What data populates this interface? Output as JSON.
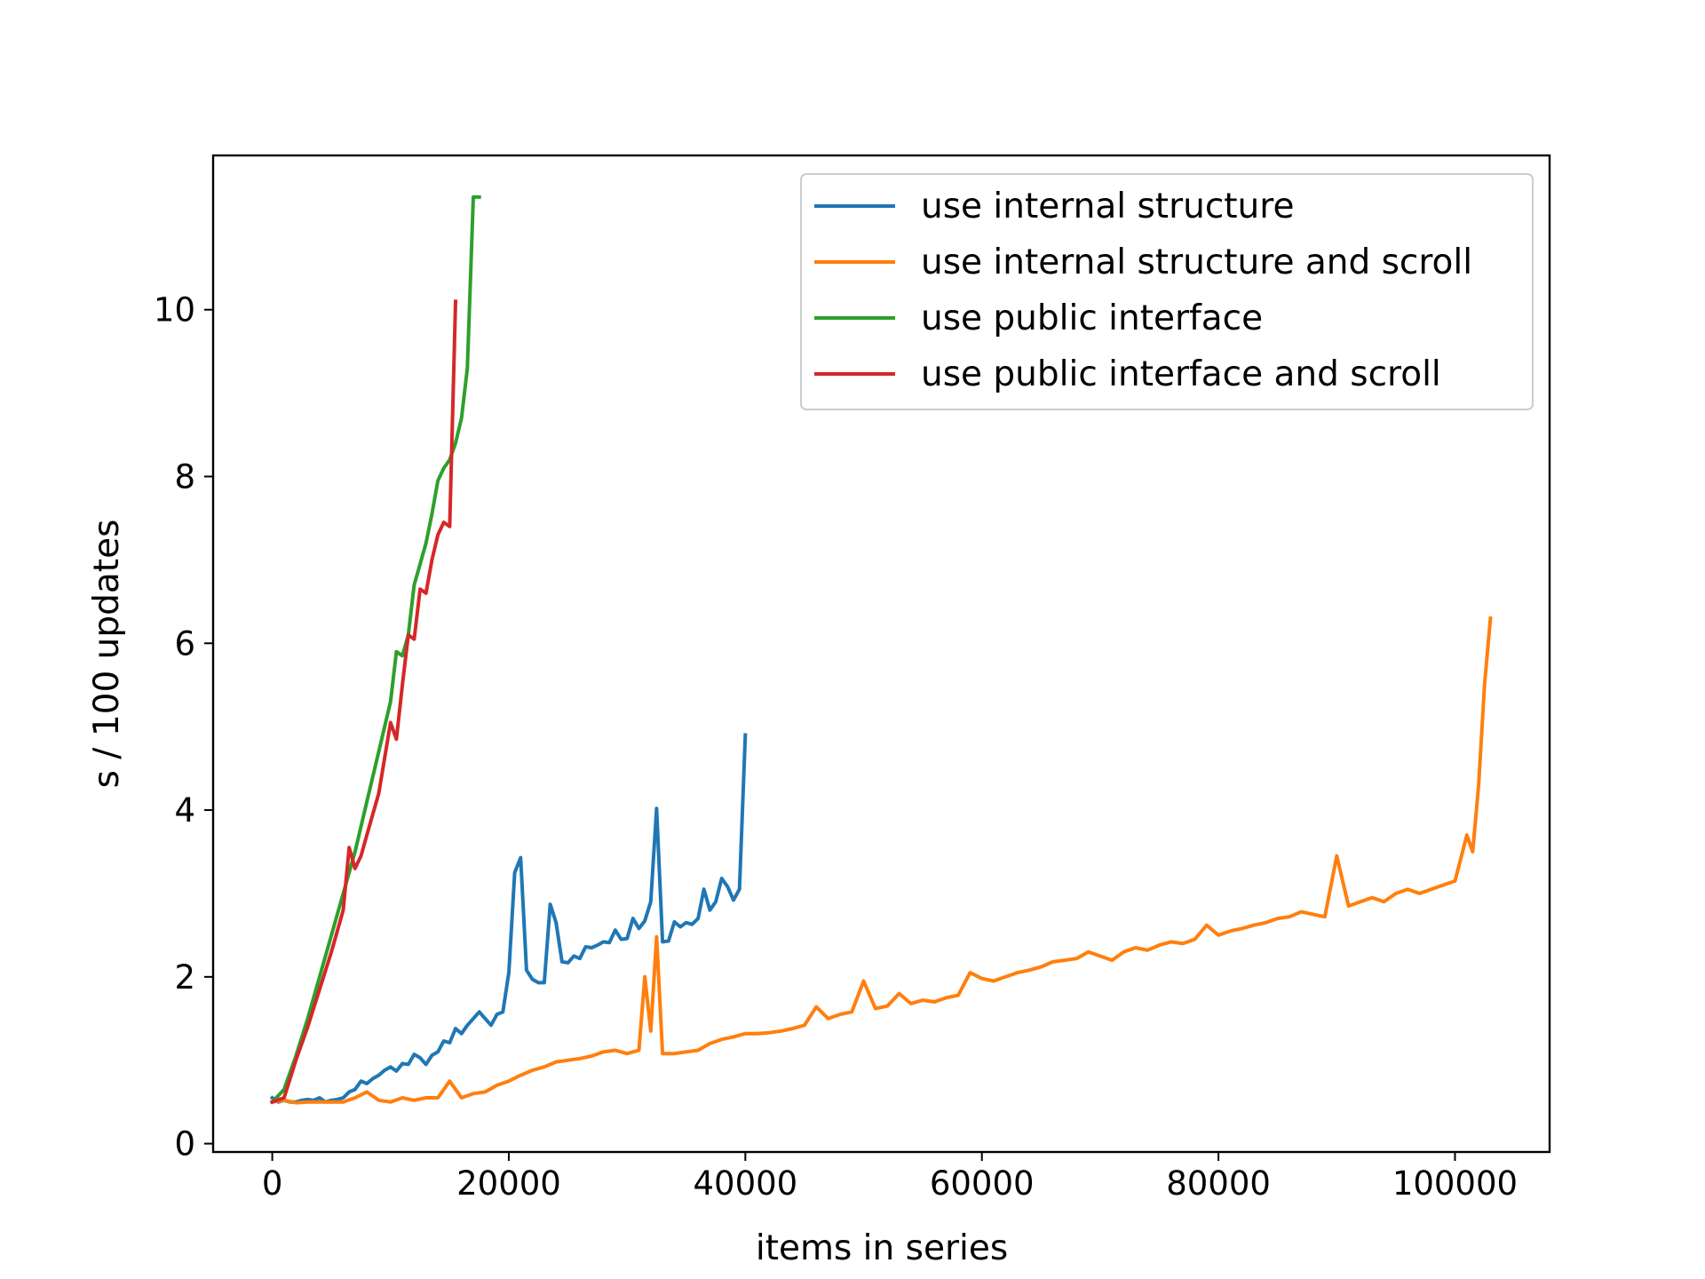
{
  "chart_data": {
    "type": "line",
    "xlabel": "items in series",
    "ylabel": "s / 100 updates",
    "xlim": [
      -5000,
      108000
    ],
    "ylim": [
      -0.1,
      11.85
    ],
    "xticks": [
      0,
      20000,
      40000,
      60000,
      80000,
      100000
    ],
    "xtick_labels": [
      "0",
      "20000",
      "40000",
      "60000",
      "80000",
      "100000"
    ],
    "yticks": [
      0,
      2,
      4,
      6,
      8,
      10
    ],
    "ytick_labels": [
      "0",
      "2",
      "4",
      "6",
      "8",
      "10"
    ],
    "grid": false,
    "legend_position": "upper right",
    "series": [
      {
        "name": "use internal structure",
        "color": "#1f77b4",
        "x": [
          0,
          500,
          1000,
          1500,
          2000,
          2500,
          3000,
          3500,
          4000,
          4500,
          5000,
          5500,
          6000,
          6500,
          7000,
          7500,
          8000,
          8500,
          9000,
          9500,
          10000,
          10500,
          11000,
          11500,
          12000,
          12500,
          13000,
          13500,
          14000,
          14500,
          15000,
          15500,
          16000,
          16500,
          17000,
          17500,
          18000,
          18500,
          19000,
          19500,
          20000,
          20500,
          21000,
          21500,
          22000,
          22500,
          23000,
          23500,
          24000,
          24500,
          25000,
          25500,
          26000,
          26500,
          27000,
          27500,
          28000,
          28500,
          29000,
          29500,
          30000,
          30500,
          31000,
          31500,
          32000,
          32500,
          33000,
          33500,
          34000,
          34500,
          35000,
          35500,
          36000,
          36500,
          37000,
          37500,
          38000,
          38500,
          39000,
          39500,
          40000
        ],
        "y": [
          0.55,
          0.5,
          0.52,
          0.5,
          0.5,
          0.52,
          0.53,
          0.52,
          0.55,
          0.5,
          0.52,
          0.53,
          0.55,
          0.62,
          0.65,
          0.75,
          0.72,
          0.78,
          0.82,
          0.88,
          0.92,
          0.87,
          0.96,
          0.95,
          1.07,
          1.03,
          0.95,
          1.06,
          1.1,
          1.23,
          1.21,
          1.38,
          1.32,
          1.42,
          1.5,
          1.58,
          1.5,
          1.42,
          1.55,
          1.58,
          2.05,
          3.25,
          3.43,
          2.08,
          1.97,
          1.93,
          1.93,
          2.87,
          2.65,
          2.18,
          2.17,
          2.25,
          2.22,
          2.36,
          2.35,
          2.38,
          2.42,
          2.41,
          2.56,
          2.45,
          2.46,
          2.7,
          2.58,
          2.67,
          2.9,
          4.02,
          2.42,
          2.43,
          2.66,
          2.6,
          2.65,
          2.63,
          2.7,
          3.05,
          2.8,
          2.9,
          3.18,
          3.08,
          2.92,
          3.05,
          4.9
        ]
      },
      {
        "name": "use internal structure and scroll",
        "color": "#ff7f0e",
        "x": [
          0,
          1000,
          2000,
          3000,
          4000,
          5000,
          6000,
          7000,
          8000,
          9000,
          10000,
          11000,
          12000,
          13000,
          14000,
          15000,
          16000,
          17000,
          18000,
          19000,
          20000,
          21000,
          22000,
          23000,
          24000,
          25000,
          26000,
          27000,
          28000,
          29000,
          30000,
          31000,
          31500,
          32000,
          32500,
          33000,
          34000,
          35000,
          36000,
          37000,
          38000,
          39000,
          40000,
          41000,
          42000,
          43000,
          44000,
          45000,
          46000,
          47000,
          48000,
          49000,
          50000,
          51000,
          52000,
          53000,
          54000,
          55000,
          56000,
          57000,
          58000,
          59000,
          60000,
          61000,
          62000,
          63000,
          64000,
          65000,
          66000,
          67000,
          68000,
          69000,
          70000,
          71000,
          72000,
          73000,
          74000,
          75000,
          76000,
          77000,
          78000,
          79000,
          80000,
          81000,
          82000,
          83000,
          84000,
          85000,
          86000,
          87000,
          88000,
          89000,
          90000,
          91000,
          92000,
          93000,
          94000,
          95000,
          96000,
          97000,
          98000,
          99000,
          100000,
          101000,
          101500,
          102000,
          102500,
          103000
        ],
        "y": [
          0.5,
          0.52,
          0.49,
          0.5,
          0.5,
          0.5,
          0.5,
          0.55,
          0.62,
          0.52,
          0.5,
          0.55,
          0.52,
          0.55,
          0.55,
          0.75,
          0.55,
          0.6,
          0.62,
          0.7,
          0.75,
          0.82,
          0.88,
          0.92,
          0.98,
          1.0,
          1.02,
          1.05,
          1.1,
          1.12,
          1.08,
          1.12,
          2.0,
          1.35,
          2.48,
          1.08,
          1.08,
          1.1,
          1.12,
          1.2,
          1.25,
          1.28,
          1.32,
          1.32,
          1.33,
          1.35,
          1.38,
          1.42,
          1.64,
          1.5,
          1.55,
          1.58,
          1.95,
          1.62,
          1.65,
          1.8,
          1.68,
          1.72,
          1.7,
          1.75,
          1.78,
          2.05,
          1.98,
          1.95,
          2.0,
          2.05,
          2.08,
          2.12,
          2.18,
          2.2,
          2.22,
          2.3,
          2.25,
          2.2,
          2.3,
          2.35,
          2.32,
          2.38,
          2.42,
          2.4,
          2.45,
          2.62,
          2.5,
          2.55,
          2.58,
          2.62,
          2.65,
          2.7,
          2.72,
          2.78,
          2.75,
          2.72,
          3.45,
          2.85,
          2.9,
          2.95,
          2.9,
          3.0,
          3.05,
          3.0,
          3.05,
          3.1,
          3.15,
          3.7,
          3.5,
          4.3,
          5.5,
          6.3
        ]
      },
      {
        "name": "use public interface",
        "color": "#2ca02c",
        "x": [
          0,
          1000,
          2000,
          3000,
          4000,
          5000,
          6000,
          7000,
          8000,
          9000,
          10000,
          10500,
          11000,
          11500,
          12000,
          12500,
          13000,
          13500,
          14000,
          14500,
          15000,
          15500,
          16000,
          16500,
          17000,
          17500
        ],
        "y": [
          0.5,
          0.65,
          1.05,
          1.5,
          2.0,
          2.5,
          3.0,
          3.5,
          4.1,
          4.7,
          5.3,
          5.9,
          5.85,
          6.1,
          6.7,
          6.95,
          7.2,
          7.55,
          7.95,
          8.1,
          8.2,
          8.4,
          8.7,
          9.3,
          11.35,
          11.35
        ]
      },
      {
        "name": "use public interface and scroll",
        "color": "#d62728",
        "x": [
          0,
          1000,
          2000,
          3000,
          4000,
          5000,
          6000,
          6500,
          7000,
          7500,
          8000,
          9000,
          10000,
          10500,
          11000,
          11500,
          12000,
          12500,
          13000,
          13500,
          14000,
          14500,
          15000,
          15500
        ],
        "y": [
          0.5,
          0.55,
          1.0,
          1.4,
          1.85,
          2.3,
          2.8,
          3.55,
          3.3,
          3.45,
          3.7,
          4.2,
          5.05,
          4.85,
          5.5,
          6.1,
          6.05,
          6.65,
          6.6,
          7.0,
          7.3,
          7.45,
          7.4,
          10.1
        ]
      }
    ]
  }
}
